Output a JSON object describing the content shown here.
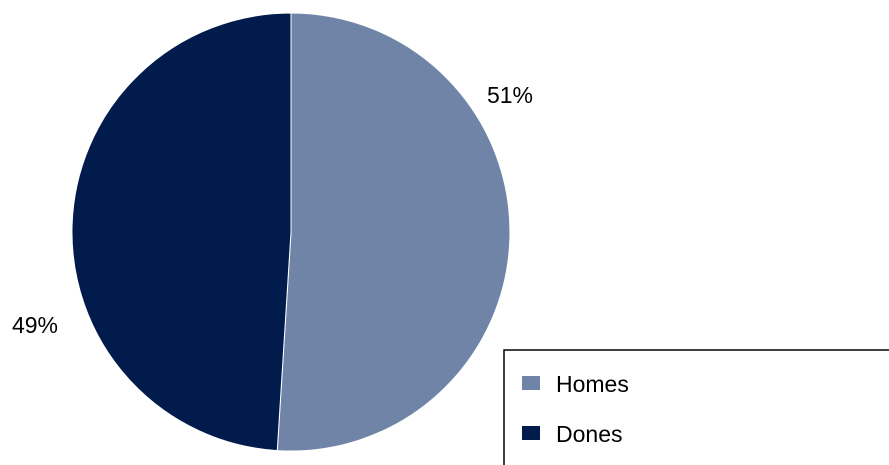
{
  "chart_data": {
    "type": "pie",
    "title": "",
    "categories": [
      "Homes",
      "Dones"
    ],
    "values": [
      51,
      49
    ],
    "value_labels": [
      "51%",
      "49%"
    ],
    "colors": [
      "#7084A8",
      "#011B4C"
    ],
    "start_angle_deg": 0,
    "direction": "clockwise",
    "legend": {
      "placement": "bottom-right",
      "items": [
        {
          "label": "Homes",
          "color": "#7084A8"
        },
        {
          "label": "Dones",
          "color": "#011B4C"
        }
      ]
    }
  }
}
